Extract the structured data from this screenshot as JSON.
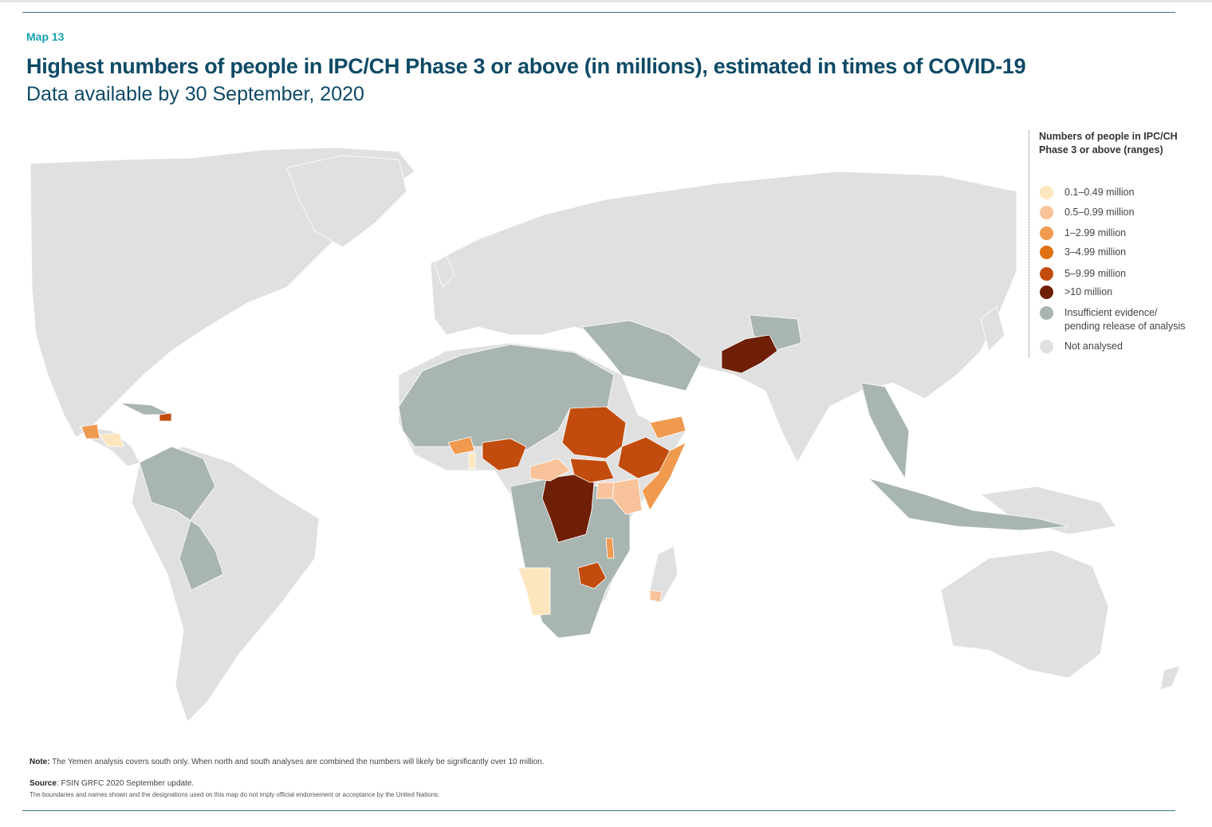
{
  "header": {
    "map_label": "Map 13",
    "title": "Highest numbers of people in IPC/CH Phase 3 or above (in millions), estimated in times of COVID-19",
    "subtitle": "Data available by 30 September, 2020"
  },
  "legend": {
    "title": "Numbers of people in IPC/CH Phase 3 or above (ranges)",
    "items": [
      {
        "label": "0.1–0.49 million",
        "color": "#fde6bd"
      },
      {
        "label": "0.5–0.99 million",
        "color": "#f8c39a"
      },
      {
        "label": "1–2.99 million",
        "color": "#ef9a4f"
      },
      {
        "label": "3–4.99 million",
        "color": "#e07110"
      },
      {
        "label": "5–9.99 million",
        "color": "#c24c0d"
      },
      {
        "label": ">10 million",
        "color": "#6e1f06"
      },
      {
        "label": "Insufficient evidence/\npending release of analysis",
        "color": "#a9b5b1"
      },
      {
        "label": "Not analysed",
        "color": "#e0e0e0"
      }
    ]
  },
  "footer": {
    "note_label": "Note:",
    "note_text": " The Yemen analysis covers south only. When north and south analyses are combined the numbers will likely be significantly over 10 million.",
    "source_label": "Source",
    "source_text": ": FSIN GRFC 2020 September update.",
    "disclaimer": "The boundaries and names shown and the designations used on this map do not imply official endorsement or acceptance by the United Nations."
  },
  "colors": {
    "accent": "#16a2b0",
    "title": "#0e4a66",
    "rule": "#3d7487",
    "land": "#e0e0e0",
    "insufficient": "#a9b5b1"
  }
}
